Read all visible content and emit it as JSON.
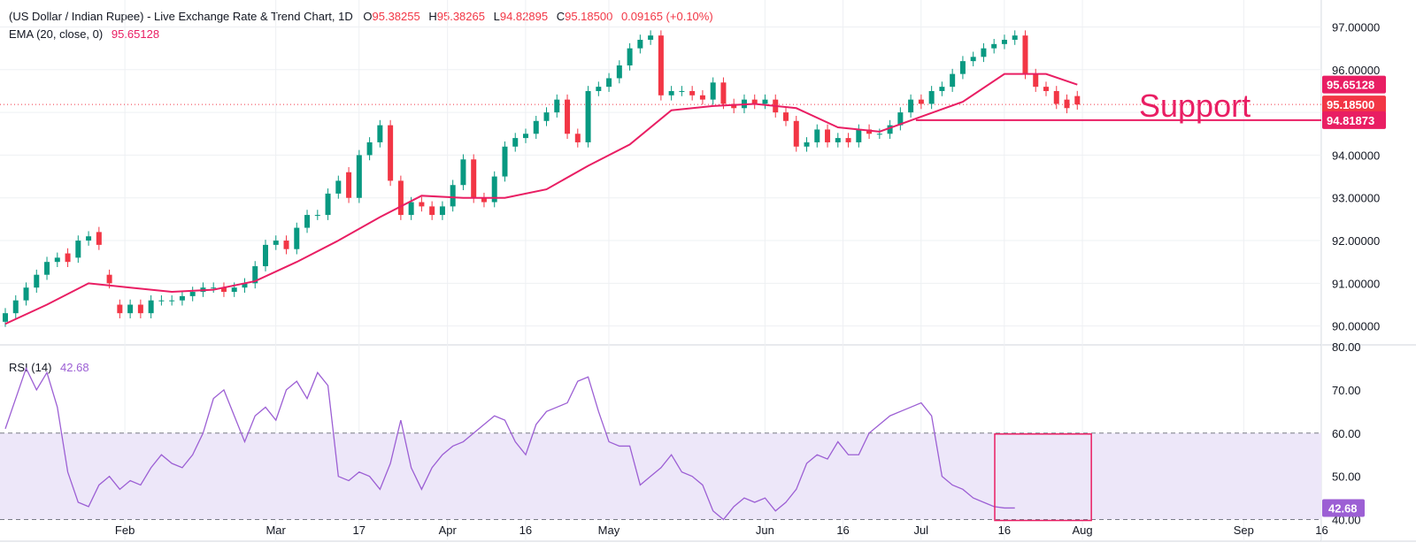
{
  "header": {
    "symbol": "(US Dollar / Indian Rupee) - Live Exchange Rate & Trend Chart, 1D",
    "o_label": "O",
    "o_value": "95.38255",
    "h_label": "H",
    "h_value": "95.38265",
    "l_label": "L",
    "l_value": "94.82895",
    "c_label": "C",
    "c_value": "95.18500",
    "change": "0.09165 (+0.10%)",
    "ema_label": "EMA (20, close, 0)",
    "ema_value": "95.65128",
    "rsi_label": "RSI (14)",
    "rsi_value": "42.68"
  },
  "colors": {
    "up": "#089981",
    "down": "#f23645",
    "ema": "#e91e63",
    "rsi": "#9c5fd4",
    "rsi_band": "#ede7f9",
    "support": "#e91e63",
    "grid": "#eef0f3"
  },
  "annotations": {
    "support_text": "Support"
  },
  "chart_data": [
    {
      "type": "candlestick",
      "title": "",
      "ylim": [
        89.6,
        97.3
      ],
      "y_ticks": [
        "97.00000",
        "96.00000",
        "95.00000",
        "94.00000",
        "93.00000",
        "92.00000",
        "91.00000",
        "90.00000"
      ],
      "y_tick_values": [
        97,
        96,
        95,
        94,
        93,
        92,
        91,
        90
      ],
      "x_ticks": [
        "Feb",
        "Mar",
        "17",
        "Apr",
        "16",
        "May",
        "Jun",
        "16",
        "Jul",
        "16",
        "Aug",
        "Sep",
        "16"
      ],
      "x_tick_days": [
        24,
        53,
        69,
        86,
        101,
        117,
        147,
        162,
        177,
        193,
        208,
        239,
        254
      ],
      "price_labels": [
        {
          "text": "95.65128",
          "value": 95.65128,
          "color": "#e91e63"
        },
        {
          "text": "95.18500",
          "value": 95.185,
          "color": "#f23645"
        },
        {
          "text": "94.81873",
          "value": 94.81873,
          "color": "#e91e63"
        }
      ],
      "support_level": 94.81873,
      "current_close": 95.185,
      "series": [
        {
          "name": "EMA (20, close, 0)",
          "kind": "line",
          "x": [
            0,
            8,
            16,
            24,
            32,
            40,
            48,
            56,
            64,
            72,
            80,
            88,
            96,
            104,
            112,
            120,
            128,
            136,
            144,
            152,
            160,
            168,
            176,
            184,
            192,
            200,
            206
          ],
          "y": [
            90.05,
            90.5,
            91.0,
            90.9,
            90.8,
            90.85,
            91.05,
            91.5,
            92.0,
            92.55,
            93.05,
            93.0,
            93.0,
            93.2,
            93.75,
            94.25,
            95.05,
            95.15,
            95.2,
            95.1,
            94.65,
            94.55,
            94.9,
            95.25,
            95.9,
            95.9,
            95.65
          ]
        },
        {
          "name": "Candles",
          "kind": "candlestick",
          "x": [
            0,
            2,
            4,
            6,
            8,
            10,
            12,
            14,
            16,
            18,
            20,
            22,
            24,
            26,
            28,
            30,
            32,
            34,
            36,
            38,
            40,
            42,
            44,
            46,
            48,
            50,
            52,
            54,
            56,
            58,
            60,
            62,
            64,
            66,
            68,
            70,
            72,
            74,
            76,
            78,
            80,
            82,
            84,
            86,
            88,
            90,
            92,
            94,
            96,
            98,
            100,
            102,
            104,
            106,
            108,
            110,
            112,
            114,
            116,
            118,
            120,
            122,
            124,
            126,
            128,
            130,
            132,
            134,
            136,
            138,
            140,
            142,
            144,
            146,
            148,
            150,
            152,
            154,
            156,
            158,
            160,
            162,
            164,
            166,
            168,
            170,
            172,
            174,
            176,
            178,
            180,
            182,
            184,
            186,
            188,
            190,
            192,
            194,
            196,
            198,
            200,
            202,
            204,
            206
          ],
          "close": [
            90.3,
            90.6,
            90.9,
            91.2,
            91.5,
            91.6,
            91.5,
            92.0,
            92.1,
            91.9,
            91.0,
            90.3,
            90.5,
            90.3,
            90.6,
            90.6,
            90.6,
            90.7,
            90.8,
            90.9,
            90.9,
            90.8,
            90.9,
            91.0,
            91.4,
            91.9,
            92.0,
            91.8,
            92.3,
            92.6,
            92.6,
            93.1,
            93.4,
            93.0,
            94.0,
            94.3,
            94.7,
            93.4,
            92.6,
            92.9,
            92.8,
            92.6,
            92.8,
            93.3,
            93.9,
            93.0,
            92.9,
            93.5,
            94.2,
            94.4,
            94.5,
            94.8,
            95.0,
            95.3,
            94.5,
            94.3,
            95.5,
            95.6,
            95.8,
            96.1,
            96.5,
            96.7,
            96.8,
            95.4,
            95.5,
            95.5,
            95.4,
            95.3,
            95.7,
            95.2,
            95.1,
            95.3,
            95.2,
            95.3,
            95.0,
            94.8,
            94.2,
            94.3,
            94.6,
            94.3,
            94.4,
            94.3,
            94.6,
            94.5,
            94.5,
            94.7,
            95.0,
            95.3,
            95.2,
            95.5,
            95.6,
            95.9,
            96.2,
            96.3,
            96.5,
            96.6,
            96.7,
            96.8,
            95.9,
            95.6,
            95.5,
            95.2,
            95.1,
            95.185
          ],
          "open": [
            90.1,
            90.3,
            90.6,
            90.9,
            91.2,
            91.5,
            91.7,
            91.6,
            92.0,
            92.2,
            91.2,
            90.5,
            90.3,
            90.5,
            90.3,
            90.6,
            90.6,
            90.6,
            90.7,
            90.8,
            90.9,
            90.9,
            90.8,
            90.9,
            91.0,
            91.4,
            91.9,
            92.0,
            91.8,
            92.3,
            92.6,
            92.6,
            93.1,
            93.6,
            93.0,
            94.0,
            94.3,
            94.7,
            93.4,
            92.6,
            92.9,
            92.8,
            92.6,
            92.8,
            93.3,
            93.9,
            93.0,
            92.9,
            93.5,
            94.2,
            94.4,
            94.5,
            94.8,
            95.0,
            95.3,
            94.5,
            94.3,
            95.5,
            95.6,
            95.8,
            96.1,
            96.5,
            96.7,
            96.8,
            95.4,
            95.5,
            95.5,
            95.4,
            95.3,
            95.7,
            95.2,
            95.1,
            95.3,
            95.2,
            95.3,
            95.0,
            94.8,
            94.2,
            94.3,
            94.6,
            94.3,
            94.4,
            94.3,
            94.6,
            94.5,
            94.5,
            94.7,
            95.0,
            95.3,
            95.2,
            95.5,
            95.6,
            95.9,
            96.2,
            96.3,
            96.5,
            96.6,
            96.7,
            96.8,
            95.9,
            95.6,
            95.5,
            95.3,
            95.38255
          ]
        }
      ]
    },
    {
      "type": "line",
      "title": "",
      "ylim": [
        39.5,
        80
      ],
      "y_ticks": [
        "80.00",
        "70.00",
        "60.00",
        "50.00",
        "40.00"
      ],
      "y_tick_values": [
        80,
        70,
        60,
        50,
        40
      ],
      "bands": [
        60,
        40
      ],
      "value_label": "42.68",
      "highlight_box": {
        "x_range": [
          200,
          207
        ],
        "y_range": [
          40,
          60
        ]
      },
      "series": [
        {
          "name": "RSI (14)",
          "x": [
            0,
            2,
            4,
            6,
            8,
            10,
            12,
            14,
            16,
            18,
            20,
            22,
            24,
            26,
            28,
            30,
            32,
            34,
            36,
            38,
            40,
            42,
            44,
            46,
            48,
            50,
            52,
            54,
            56,
            58,
            60,
            62,
            64,
            66,
            68,
            70,
            72,
            74,
            76,
            78,
            80,
            82,
            84,
            86,
            88,
            90,
            92,
            94,
            96,
            98,
            100,
            102,
            104,
            106,
            108,
            110,
            112,
            114,
            116,
            118,
            120,
            122,
            124,
            126,
            128,
            130,
            132,
            134,
            136,
            138,
            140,
            142,
            144,
            146,
            148,
            150,
            152,
            154,
            156,
            158,
            160,
            162,
            164,
            166,
            168,
            170,
            172,
            174,
            176,
            178,
            180,
            182,
            184,
            186,
            188,
            190,
            192,
            194,
            196,
            198,
            200,
            202,
            204,
            206
          ],
          "y": [
            61,
            68,
            75,
            70,
            74,
            66,
            51,
            44,
            43,
            48,
            50,
            47,
            49,
            48,
            52,
            55,
            53,
            52,
            55,
            60,
            68,
            70,
            64,
            58,
            64,
            66,
            63,
            70,
            72,
            68,
            74,
            71,
            50,
            49,
            51,
            50,
            47,
            53,
            63,
            52,
            47,
            52,
            55,
            57,
            58,
            60,
            62,
            64,
            63,
            58,
            55,
            62,
            65,
            66,
            67,
            72,
            73,
            65,
            58,
            57,
            57,
            48,
            50,
            52,
            55,
            51,
            50,
            48,
            42,
            40,
            43,
            45,
            44,
            45,
            42,
            44,
            47,
            53,
            55,
            54,
            58,
            55,
            55,
            60,
            62,
            64,
            65,
            66,
            67,
            64,
            50,
            48,
            47,
            45,
            44,
            43,
            42.68,
            42.68,
            42.68,
            42.68,
            42.68,
            42.68,
            42.68,
            42.68
          ]
        }
      ]
    }
  ]
}
